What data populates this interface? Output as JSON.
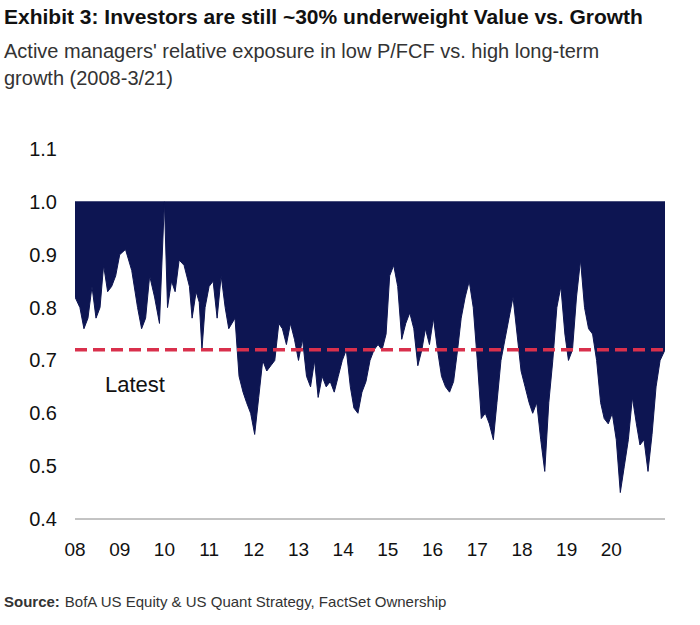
{
  "chart_data": {
    "type": "area",
    "title": "Exhibit 3: Investors are still ~30% underweight Value vs. Growth",
    "subtitle": [
      "Active managers' relative exposure in low P/FCF vs. high long-term",
      "growth (2008-3/21)"
    ],
    "source_label": "Source:",
    "source": "BofA US Equity & US Quant Strategy, FactSet Ownership",
    "color": "#0d1552",
    "baseline": 1,
    "grid": false,
    "x": [
      2008.0,
      2008.11,
      2008.2,
      2008.29,
      2008.38,
      2008.47,
      2008.56,
      2008.64,
      2008.73,
      2008.82,
      2008.91,
      2009.0,
      2009.13,
      2009.27,
      2009.4,
      2009.49,
      2009.58,
      2009.67,
      2009.78,
      2009.89,
      2010.0,
      2010.07,
      2010.16,
      2010.24,
      2010.33,
      2010.44,
      2010.56,
      2010.62,
      2010.71,
      2010.78,
      2010.84,
      2010.91,
      2011.0,
      2011.09,
      2011.18,
      2011.27,
      2011.36,
      2011.44,
      2011.58,
      2011.67,
      2011.76,
      2011.84,
      2011.93,
      2012.02,
      2012.11,
      2012.2,
      2012.29,
      2012.38,
      2012.47,
      2012.56,
      2012.64,
      2012.73,
      2012.82,
      2012.91,
      2013.0,
      2013.09,
      2013.18,
      2013.27,
      2013.36,
      2013.44,
      2013.53,
      2013.62,
      2013.71,
      2013.8,
      2013.89,
      2013.98,
      2014.07,
      2014.16,
      2014.24,
      2014.33,
      2014.42,
      2014.51,
      2014.6,
      2014.69,
      2014.78,
      2014.87,
      2014.96,
      2015.04,
      2015.13,
      2015.22,
      2015.31,
      2015.4,
      2015.49,
      2015.58,
      2015.67,
      2015.76,
      2015.84,
      2015.93,
      2016.02,
      2016.11,
      2016.2,
      2016.29,
      2016.38,
      2016.47,
      2016.56,
      2016.64,
      2016.73,
      2016.82,
      2016.91,
      2017.0,
      2017.09,
      2017.18,
      2017.27,
      2017.36,
      2017.44,
      2017.53,
      2017.62,
      2017.71,
      2017.8,
      2017.89,
      2017.98,
      2018.07,
      2018.16,
      2018.24,
      2018.33,
      2018.42,
      2018.51,
      2018.6,
      2018.69,
      2018.78,
      2018.87,
      2018.96,
      2019.04,
      2019.13,
      2019.22,
      2019.31,
      2019.4,
      2019.49,
      2019.58,
      2019.67,
      2019.76,
      2019.84,
      2019.93,
      2020.02,
      2020.11,
      2020.2,
      2020.29,
      2020.38,
      2020.47,
      2020.56,
      2020.64,
      2020.73,
      2020.82,
      2020.91,
      2021.0,
      2021.09,
      2021.2
    ],
    "values": [
      0.82,
      0.8,
      0.76,
      0.78,
      0.84,
      0.78,
      0.8,
      0.88,
      0.83,
      0.84,
      0.86,
      0.9,
      0.91,
      0.87,
      0.8,
      0.76,
      0.78,
      0.86,
      0.82,
      0.77,
      1.0,
      0.8,
      0.85,
      0.83,
      0.89,
      0.88,
      0.84,
      0.78,
      0.83,
      0.81,
      0.72,
      0.8,
      0.84,
      0.85,
      0.78,
      0.86,
      0.8,
      0.76,
      0.78,
      0.67,
      0.64,
      0.62,
      0.6,
      0.56,
      0.63,
      0.7,
      0.68,
      0.69,
      0.7,
      0.77,
      0.76,
      0.73,
      0.77,
      0.74,
      0.7,
      0.74,
      0.67,
      0.65,
      0.7,
      0.63,
      0.67,
      0.65,
      0.66,
      0.64,
      0.67,
      0.7,
      0.72,
      0.65,
      0.61,
      0.6,
      0.64,
      0.66,
      0.7,
      0.72,
      0.73,
      0.72,
      0.75,
      0.86,
      0.88,
      0.84,
      0.74,
      0.77,
      0.79,
      0.76,
      0.69,
      0.72,
      0.76,
      0.73,
      0.78,
      0.72,
      0.67,
      0.65,
      0.64,
      0.66,
      0.72,
      0.78,
      0.82,
      0.85,
      0.8,
      0.7,
      0.59,
      0.6,
      0.58,
      0.55,
      0.62,
      0.7,
      0.74,
      0.78,
      0.82,
      0.75,
      0.68,
      0.65,
      0.62,
      0.6,
      0.62,
      0.55,
      0.49,
      0.62,
      0.7,
      0.8,
      0.84,
      0.75,
      0.7,
      0.72,
      0.82,
      0.89,
      0.8,
      0.76,
      0.75,
      0.7,
      0.62,
      0.59,
      0.58,
      0.6,
      0.55,
      0.45,
      0.5,
      0.55,
      0.63,
      0.58,
      0.54,
      0.55,
      0.49,
      0.56,
      0.65,
      0.7,
      0.72
    ],
    "xlim": [
      2008,
      2021.2
    ],
    "xticks": [
      {
        "value": 2008,
        "label": "08"
      },
      {
        "value": 2009,
        "label": "09"
      },
      {
        "value": 2010,
        "label": "10"
      },
      {
        "value": 2011,
        "label": "11"
      },
      {
        "value": 2012,
        "label": "12"
      },
      {
        "value": 2013,
        "label": "13"
      },
      {
        "value": 2014,
        "label": "14"
      },
      {
        "value": 2015,
        "label": "15"
      },
      {
        "value": 2016,
        "label": "16"
      },
      {
        "value": 2017,
        "label": "17"
      },
      {
        "value": 2018,
        "label": "18"
      },
      {
        "value": 2019,
        "label": "19"
      },
      {
        "value": 2020,
        "label": "20"
      }
    ],
    "ylim": [
      0.4,
      1.1
    ],
    "yticks": [
      0.4,
      0.5,
      0.6,
      0.7,
      0.8,
      0.9,
      {
        "value": 1,
        "label": "1.0"
      },
      1.1
    ],
    "annotations": [
      {
        "text": "Latest",
        "y": 0.72,
        "color": "#d9304c",
        "line_style": "dashed"
      }
    ]
  }
}
